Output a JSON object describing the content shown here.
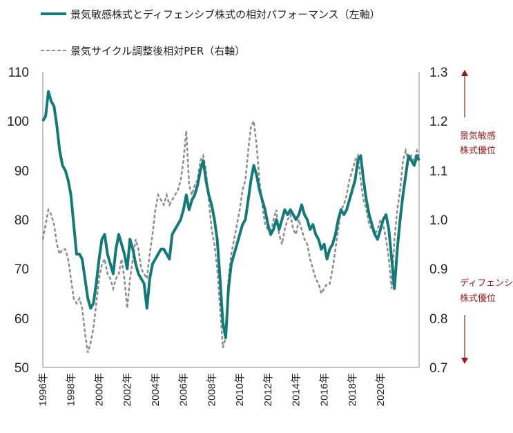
{
  "chart_data": {
    "type": "line",
    "title": "",
    "xlabel": "",
    "legend": {
      "placement": "top-left",
      "entries": [
        "景気敏感株式とディフェンシブ株式の相対パフォーマンス（左軸）",
        "景気サイクル調整後相対PER（右軸）"
      ]
    },
    "y_left": {
      "ylim": [
        50,
        110
      ],
      "ticks": [
        "110",
        "100",
        "90",
        "80",
        "70",
        "60",
        "50"
      ]
    },
    "y_right": {
      "ylim": [
        0.7,
        1.3
      ],
      "ticks": [
        "1.3",
        "1.2",
        "1.1",
        "1.0",
        "0.9",
        "0.8",
        "0.7"
      ]
    },
    "x_ticks": [
      "1996年",
      "1998年",
      "2000年",
      "2002年",
      "2004年",
      "2006年",
      "2008年",
      "2010年",
      "2012年",
      "2014年",
      "2016年",
      "2018年",
      "2020年"
    ],
    "x_range": [
      1996,
      2022.75
    ],
    "grid": false,
    "series": [
      {
        "name": "景気敏感株式とディフェンシブ株式の相対パフォーマンス（左軸）",
        "axis": "left",
        "color": "#127a78",
        "style": "solid",
        "x": [
          1996.0,
          1996.2,
          1996.4,
          1996.6,
          1996.8,
          1997.0,
          1997.2,
          1997.4,
          1997.6,
          1997.8,
          1998.0,
          1998.2,
          1998.4,
          1998.6,
          1998.8,
          1999.0,
          1999.2,
          1999.4,
          1999.6,
          1999.8,
          2000.0,
          2000.2,
          2000.4,
          2000.6,
          2000.8,
          2001.0,
          2001.2,
          2001.4,
          2001.6,
          2001.8,
          2002.0,
          2002.2,
          2002.4,
          2002.6,
          2002.8,
          2003.0,
          2003.2,
          2003.4,
          2003.6,
          2003.8,
          2004.0,
          2004.2,
          2004.4,
          2004.6,
          2004.8,
          2005.0,
          2005.2,
          2005.4,
          2005.6,
          2005.8,
          2006.0,
          2006.2,
          2006.4,
          2006.6,
          2006.8,
          2007.0,
          2007.2,
          2007.4,
          2007.6,
          2007.8,
          2008.0,
          2008.2,
          2008.4,
          2008.6,
          2008.8,
          2009.0,
          2009.2,
          2009.4,
          2009.6,
          2009.8,
          2010.0,
          2010.2,
          2010.4,
          2010.6,
          2010.8,
          2011.0,
          2011.2,
          2011.4,
          2011.6,
          2011.8,
          2012.0,
          2012.2,
          2012.4,
          2012.6,
          2012.8,
          2013.0,
          2013.2,
          2013.4,
          2013.6,
          2013.8,
          2014.0,
          2014.2,
          2014.4,
          2014.6,
          2014.8,
          2015.0,
          2015.2,
          2015.4,
          2015.6,
          2015.8,
          2016.0,
          2016.2,
          2016.4,
          2016.6,
          2016.8,
          2017.0,
          2017.2,
          2017.4,
          2017.6,
          2017.8,
          2018.0,
          2018.2,
          2018.4,
          2018.6,
          2018.8,
          2019.0,
          2019.2,
          2019.4,
          2019.6,
          2019.8,
          2020.0,
          2020.2,
          2020.4,
          2020.6,
          2020.8,
          2021.0,
          2021.2,
          2021.4,
          2021.6,
          2021.8,
          2022.0,
          2022.2,
          2022.4,
          2022.6,
          2022.75
        ],
        "y": [
          100,
          101,
          106,
          104,
          103,
          99,
          94,
          91,
          90,
          88,
          85,
          79,
          73,
          73,
          72,
          68,
          64,
          62,
          63,
          67,
          72,
          76,
          77,
          73,
          71,
          69,
          74,
          77,
          75,
          73,
          70,
          76,
          74,
          71,
          69,
          68,
          67,
          62,
          68,
          71,
          72,
          73,
          74,
          74,
          73,
          72,
          77,
          78,
          79,
          80,
          82,
          85,
          82,
          84,
          85,
          87,
          90,
          92,
          88,
          85,
          83,
          80,
          76,
          68,
          59,
          56,
          66,
          71,
          73,
          75,
          77,
          79,
          80,
          84,
          88,
          91,
          89,
          86,
          84,
          82,
          79,
          77,
          78,
          80,
          78,
          80,
          82,
          81,
          82,
          81,
          80,
          81,
          83,
          81,
          80,
          78,
          79,
          77,
          76,
          74,
          75,
          72,
          74,
          75,
          77,
          80,
          82,
          81,
          82,
          84,
          86,
          88,
          92,
          93,
          88,
          84,
          81,
          79,
          77,
          76,
          78,
          80,
          81,
          78,
          72,
          66,
          74,
          80,
          85,
          89,
          93,
          92,
          91,
          93,
          92
        ]
      },
      {
        "name": "景気サイクル調整後相対PER（右軸）",
        "axis": "right",
        "color": "#8c8c8c",
        "style": "dashed",
        "x": [
          1996.0,
          1996.2,
          1996.4,
          1996.6,
          1996.8,
          1997.0,
          1997.2,
          1997.4,
          1997.6,
          1997.8,
          1998.0,
          1998.2,
          1998.4,
          1998.6,
          1998.8,
          1999.0,
          1999.2,
          1999.4,
          1999.6,
          1999.8,
          2000.0,
          2000.2,
          2000.4,
          2000.6,
          2000.8,
          2001.0,
          2001.2,
          2001.4,
          2001.6,
          2001.8,
          2002.0,
          2002.2,
          2002.4,
          2002.6,
          2002.8,
          2003.0,
          2003.2,
          2003.4,
          2003.6,
          2003.8,
          2004.0,
          2004.2,
          2004.4,
          2004.6,
          2004.8,
          2005.0,
          2005.2,
          2005.4,
          2005.6,
          2005.8,
          2006.0,
          2006.2,
          2006.4,
          2006.6,
          2006.8,
          2007.0,
          2007.2,
          2007.4,
          2007.6,
          2007.8,
          2008.0,
          2008.2,
          2008.4,
          2008.6,
          2008.8,
          2009.0,
          2009.2,
          2009.4,
          2009.6,
          2009.8,
          2010.0,
          2010.2,
          2010.4,
          2010.6,
          2010.8,
          2011.0,
          2011.2,
          2011.4,
          2011.6,
          2011.8,
          2012.0,
          2012.2,
          2012.4,
          2012.6,
          2012.8,
          2013.0,
          2013.2,
          2013.4,
          2013.6,
          2013.8,
          2014.0,
          2014.2,
          2014.4,
          2014.6,
          2014.8,
          2015.0,
          2015.2,
          2015.4,
          2015.6,
          2015.8,
          2016.0,
          2016.2,
          2016.4,
          2016.6,
          2016.8,
          2017.0,
          2017.2,
          2017.4,
          2017.6,
          2017.8,
          2018.0,
          2018.2,
          2018.4,
          2018.6,
          2018.8,
          2019.0,
          2019.2,
          2019.4,
          2019.6,
          2019.8,
          2020.0,
          2020.2,
          2020.4,
          2020.6,
          2020.8,
          2021.0,
          2021.2,
          2021.4,
          2021.6,
          2021.8,
          2022.0,
          2022.2,
          2022.4,
          2022.6,
          2022.75
        ],
        "y": [
          0.96,
          0.99,
          1.02,
          1.01,
          0.99,
          0.95,
          0.93,
          0.94,
          0.94,
          0.92,
          0.88,
          0.84,
          0.83,
          0.84,
          0.82,
          0.77,
          0.73,
          0.75,
          0.78,
          0.83,
          0.88,
          0.91,
          0.92,
          0.89,
          0.88,
          0.86,
          0.88,
          0.89,
          0.92,
          0.88,
          0.82,
          0.88,
          0.92,
          0.96,
          0.94,
          0.9,
          0.89,
          0.88,
          0.93,
          0.97,
          1.02,
          1.05,
          1.04,
          1.03,
          1.05,
          1.03,
          1.04,
          1.05,
          1.06,
          1.08,
          1.12,
          1.18,
          1.07,
          1.05,
          1.07,
          1.08,
          1.12,
          1.13,
          1.1,
          1.04,
          0.98,
          0.95,
          0.9,
          0.82,
          0.74,
          0.76,
          0.88,
          0.93,
          0.96,
          0.99,
          1.02,
          1.06,
          1.08,
          1.14,
          1.19,
          1.2,
          1.15,
          1.08,
          1.03,
          0.99,
          0.98,
          0.97,
          1.0,
          1.02,
          0.97,
          0.95,
          0.98,
          1.0,
          1.01,
          0.98,
          0.97,
          1.0,
          0.98,
          0.96,
          0.95,
          0.92,
          0.9,
          0.88,
          0.87,
          0.85,
          0.86,
          0.87,
          0.87,
          0.9,
          0.94,
          0.98,
          1.02,
          1.03,
          1.05,
          1.08,
          1.1,
          1.12,
          1.13,
          1.08,
          1.04,
          1.02,
          0.99,
          0.98,
          0.97,
          0.98,
          1.0,
          0.99,
          0.96,
          0.92,
          0.86,
          0.96,
          1.02,
          1.06,
          1.12,
          1.14,
          1.12,
          1.13,
          1.12,
          1.14,
          1.13
        ]
      }
    ],
    "annotations": {
      "up_label_line1": "景気敏感",
      "up_label_line2": "株式優位",
      "down_label_line1": "ディフェンシ",
      "down_label_line2": "株式優位",
      "color": "#9b1b1b"
    }
  }
}
